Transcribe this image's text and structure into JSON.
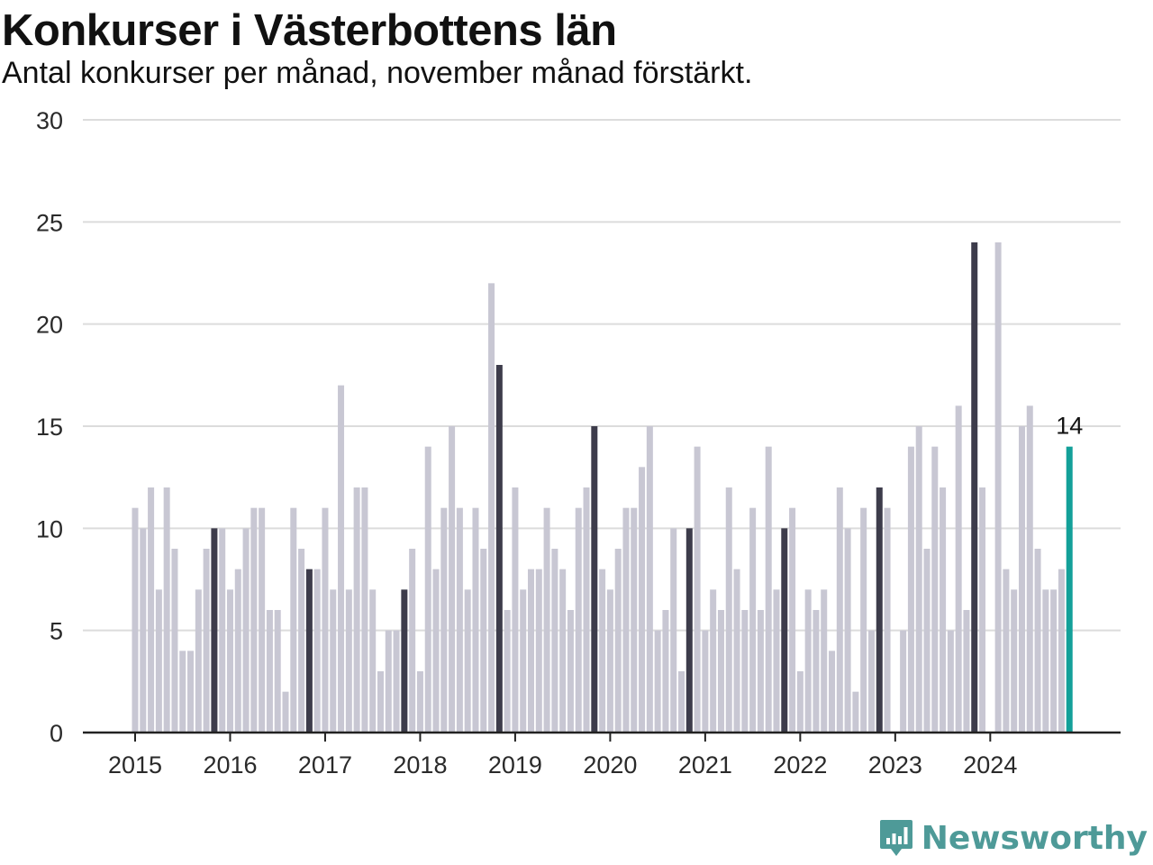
{
  "header": {
    "title": "Konkurser i Västerbottens län",
    "subtitle": "Antal konkurser per månad, november månad förstärkt."
  },
  "brand": {
    "name": "Newsworthy",
    "icon": "newsworthy-logo-icon",
    "color": "#4e9a98"
  },
  "colors": {
    "regular": "#c8c7d3",
    "november": "#3d3c4b",
    "latest": "#13a099",
    "axis": "#222222",
    "grid": "#dcdcdc"
  },
  "chart_data": {
    "type": "bar",
    "start": "2015-01",
    "x_ticks": [
      "2015",
      "2016",
      "2017",
      "2018",
      "2019",
      "2020",
      "2021",
      "2022",
      "2023",
      "2024"
    ],
    "y_ticks": [
      "0",
      "5",
      "10",
      "15",
      "20",
      "25",
      "30"
    ],
    "ylim": [
      0,
      30
    ],
    "grid": true,
    "highlighted_month": "november",
    "latest_label": "14",
    "values": [
      11,
      10,
      12,
      7,
      12,
      9,
      4,
      4,
      7,
      9,
      10,
      10,
      7,
      8,
      10,
      11,
      11,
      6,
      6,
      2,
      11,
      9,
      8,
      8,
      11,
      7,
      17,
      7,
      12,
      12,
      7,
      3,
      5,
      5,
      7,
      9,
      3,
      14,
      8,
      11,
      15,
      11,
      7,
      11,
      9,
      22,
      18,
      6,
      12,
      7,
      8,
      8,
      11,
      9,
      8,
      6,
      11,
      12,
      15,
      8,
      7,
      9,
      11,
      11,
      13,
      15,
      5,
      6,
      10,
      3,
      10,
      14,
      5,
      7,
      6,
      12,
      8,
      6,
      11,
      6,
      14,
      7,
      10,
      11,
      3,
      7,
      6,
      7,
      4,
      12,
      10,
      2,
      11,
      5,
      12,
      11,
      0,
      5,
      14,
      15,
      9,
      14,
      12,
      5,
      16,
      6,
      24,
      12,
      0,
      24,
      8,
      7,
      15,
      16,
      9,
      7,
      7,
      8,
      14
    ]
  }
}
